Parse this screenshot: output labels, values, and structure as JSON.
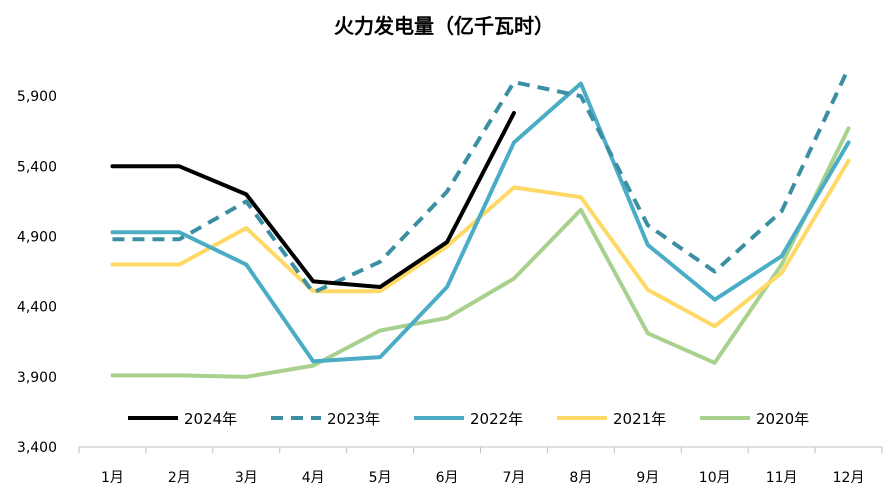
{
  "chart_data": {
    "type": "line",
    "title": "火力发电量（亿千瓦时）",
    "xlabel": "",
    "ylabel": "",
    "categories": [
      "1月",
      "2月",
      "3月",
      "4月",
      "5月",
      "6月",
      "7月",
      "8月",
      "9月",
      "10月",
      "11月",
      "12月"
    ],
    "ylim": [
      3400,
      6300
    ],
    "yticks": [
      3400,
      3900,
      4400,
      4900,
      5400,
      5900
    ],
    "ytick_labels": [
      "3,400",
      "3,900",
      "4,400",
      "4,900",
      "5,400",
      "5,900"
    ],
    "grid": false,
    "legend_position": "bottom",
    "series": [
      {
        "name": "2024年",
        "color": "#000000",
        "dash": false,
        "values": [
          5400,
          5400,
          5200,
          4580,
          4540,
          4860,
          5780,
          null,
          null,
          null,
          null,
          null
        ]
      },
      {
        "name": "2023年",
        "color": "#3a8fa3",
        "dash": true,
        "values": [
          4880,
          4880,
          5150,
          4500,
          4720,
          5220,
          6000,
          5900,
          4980,
          4650,
          5080,
          6100
        ]
      },
      {
        "name": "2022年",
        "color": "#4bacc6",
        "dash": false,
        "values": [
          4930,
          4930,
          4700,
          4010,
          4040,
          4540,
          5570,
          5990,
          4840,
          4450,
          4760,
          5570
        ]
      },
      {
        "name": "2021年",
        "color": "#ffd966",
        "dash": false,
        "values": [
          4700,
          4700,
          4960,
          4510,
          4510,
          4830,
          5250,
          5180,
          4520,
          4260,
          4640,
          5440
        ]
      },
      {
        "name": "2020年",
        "color": "#a9d18e",
        "dash": false,
        "values": [
          3910,
          3910,
          3900,
          3980,
          4230,
          4320,
          4600,
          5090,
          4210,
          4000,
          4700,
          5670
        ]
      }
    ]
  }
}
